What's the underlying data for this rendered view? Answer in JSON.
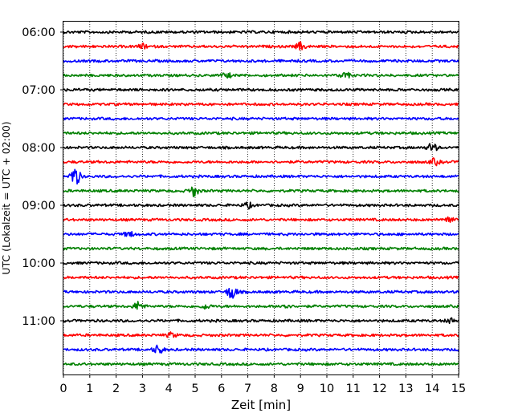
{
  "chart_data": {
    "type": "line",
    "title": "",
    "xlabel": "Zeit  [min]",
    "ylabel": "UTC (Lokalzeit = UTC + 02:00)",
    "xlim": [
      0,
      15
    ],
    "x_ticks": [
      "0",
      "1",
      "2",
      "3",
      "4",
      "5",
      "6",
      "7",
      "8",
      "9",
      "10",
      "11",
      "12",
      "13",
      "14",
      "15"
    ],
    "y_ticks": [
      "06:00",
      "07:00",
      "08:00",
      "09:00",
      "10:00",
      "11:00"
    ],
    "grid": "vertical dotted",
    "trace_interval_minutes": 15,
    "trace_colors": [
      "#000000",
      "#ff0000",
      "#0000ff",
      "#008000"
    ],
    "traces": [
      {
        "start": "06:00",
        "events": []
      },
      {
        "start": "06:15",
        "events": [
          {
            "t": 3.0,
            "a": 0.3
          },
          {
            "t": 9.0,
            "a": 0.5
          }
        ]
      },
      {
        "start": "06:30",
        "events": []
      },
      {
        "start": "06:45",
        "events": [
          {
            "t": 6.2,
            "a": 0.3
          },
          {
            "t": 10.7,
            "a": 0.4
          }
        ]
      },
      {
        "start": "07:00",
        "events": []
      },
      {
        "start": "07:15",
        "events": []
      },
      {
        "start": "07:30",
        "events": []
      },
      {
        "start": "07:45",
        "events": []
      },
      {
        "start": "08:00",
        "events": [
          {
            "t": 14.0,
            "a": 0.6
          }
        ]
      },
      {
        "start": "08:15",
        "events": [
          {
            "t": 14.1,
            "a": 0.4
          }
        ]
      },
      {
        "start": "08:30",
        "events": [
          {
            "t": 0.45,
            "a": 1.3
          }
        ]
      },
      {
        "start": "08:45",
        "events": [
          {
            "t": 4.95,
            "a": 0.7
          }
        ]
      },
      {
        "start": "09:00",
        "events": [
          {
            "t": 7.0,
            "a": 0.35
          }
        ]
      },
      {
        "start": "09:15",
        "events": [
          {
            "t": 14.6,
            "a": 0.5
          }
        ]
      },
      {
        "start": "09:30",
        "events": [
          {
            "t": 2.5,
            "a": 0.35
          }
        ]
      },
      {
        "start": "09:45",
        "events": []
      },
      {
        "start": "10:00",
        "events": []
      },
      {
        "start": "10:15",
        "events": []
      },
      {
        "start": "10:30",
        "events": [
          {
            "t": 6.4,
            "a": 1.0
          }
        ]
      },
      {
        "start": "10:45",
        "events": [
          {
            "t": 2.85,
            "a": 0.6
          },
          {
            "t": 5.4,
            "a": 0.3
          },
          {
            "t": 8.4,
            "a": 0.35
          }
        ]
      },
      {
        "start": "11:00",
        "events": [
          {
            "t": 14.7,
            "a": 0.3
          }
        ]
      },
      {
        "start": "11:15",
        "events": [
          {
            "t": 4.1,
            "a": 0.3
          }
        ]
      },
      {
        "start": "11:30",
        "events": [
          {
            "t": 3.6,
            "a": 0.6
          }
        ]
      },
      {
        "start": "11:45",
        "events": []
      }
    ]
  }
}
